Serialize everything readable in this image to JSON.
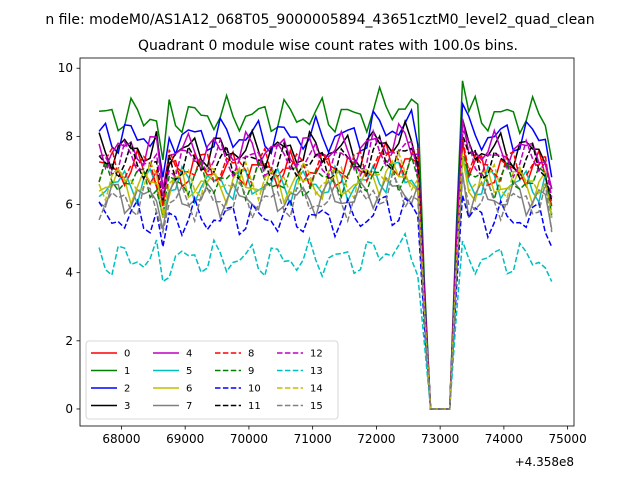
{
  "chart_data": {
    "type": "line",
    "suptitle": "n file: modeM0/AS1A12_068T05_9000005894_43651cztM0_level2_quad_clean",
    "title": "Quadrant 0 module wise count rates with 100.0s bins.",
    "xlabel": "",
    "ylabel": "",
    "x_offset_label": "+4.358e8",
    "xlim": [
      67350,
      75100
    ],
    "ylim": [
      -0.5,
      10.3
    ],
    "xticks": [
      68000,
      69000,
      70000,
      71000,
      72000,
      73000,
      74000,
      75000
    ],
    "yticks": [
      0,
      2,
      4,
      6,
      8,
      10
    ],
    "grid": false,
    "legend_position": "lower-left",
    "legend_columns": 4,
    "x_start": 67650,
    "x_step": 100,
    "series": [
      {
        "name": "0",
        "color": "#ff0000",
        "dash": "solid",
        "base": 7.0
      },
      {
        "name": "1",
        "color": "#008000",
        "dash": "solid",
        "base": 8.6
      },
      {
        "name": "2",
        "color": "#0000ff",
        "dash": "solid",
        "base": 8.0
      },
      {
        "name": "3",
        "color": "#000000",
        "dash": "solid",
        "base": 7.6
      },
      {
        "name": "4",
        "color": "#bf00bf",
        "dash": "solid",
        "base": 7.6
      },
      {
        "name": "5",
        "color": "#00bfbf",
        "dash": "solid",
        "base": 6.6
      },
      {
        "name": "6",
        "color": "#bfbf00",
        "dash": "solid",
        "base": 6.6
      },
      {
        "name": "7",
        "color": "#808080",
        "dash": "solid",
        "base": 6.2
      },
      {
        "name": "8",
        "color": "#ff0000",
        "dash": "dashed",
        "base": 7.1
      },
      {
        "name": "9",
        "color": "#008000",
        "dash": "dashed",
        "base": 6.7
      },
      {
        "name": "10",
        "color": "#0000ff",
        "dash": "dashed",
        "base": 5.6
      },
      {
        "name": "11",
        "color": "#000000",
        "dash": "dashed",
        "base": 7.2
      },
      {
        "name": "12",
        "color": "#bf00bf",
        "dash": "dashed",
        "base": 7.3
      },
      {
        "name": "13",
        "color": "#00bfbf",
        "dash": "dashed",
        "base": 4.4
      },
      {
        "name": "14",
        "color": "#bfbf00",
        "dash": "dashed",
        "base": 6.7
      },
      {
        "name": "15",
        "color": "#808080",
        "dash": "dashed",
        "base": 6.1
      }
    ]
  }
}
